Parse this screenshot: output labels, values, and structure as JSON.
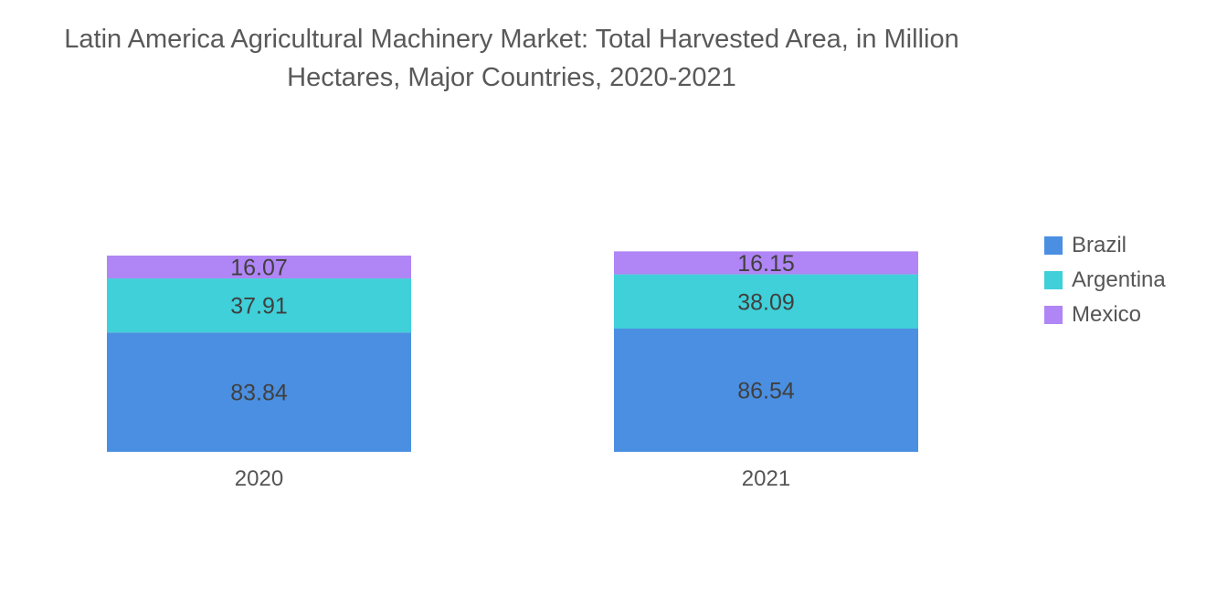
{
  "title_line1": "Latin America Agricultural Machinery Market: Total Harvested Area, in Million",
  "title_line2": "Hectares, Major Countries, 2020-2021",
  "colors": {
    "Brazil": "#4a8fe2",
    "Argentina": "#3fd0d9",
    "Mexico": "#b085f5"
  },
  "chart_data": {
    "type": "bar",
    "stacked": true,
    "title": "Latin America Agricultural Machinery Market: Total Harvested Area, in Million Hectares, Major Countries, 2020-2021",
    "categories": [
      "2020",
      "2021"
    ],
    "series": [
      {
        "name": "Brazil",
        "values": [
          83.84,
          86.54
        ]
      },
      {
        "name": "Argentina",
        "values": [
          37.91,
          38.09
        ]
      },
      {
        "name": "Mexico",
        "values": [
          16.07,
          16.15
        ]
      }
    ],
    "legend_position": "right",
    "grid": false
  }
}
